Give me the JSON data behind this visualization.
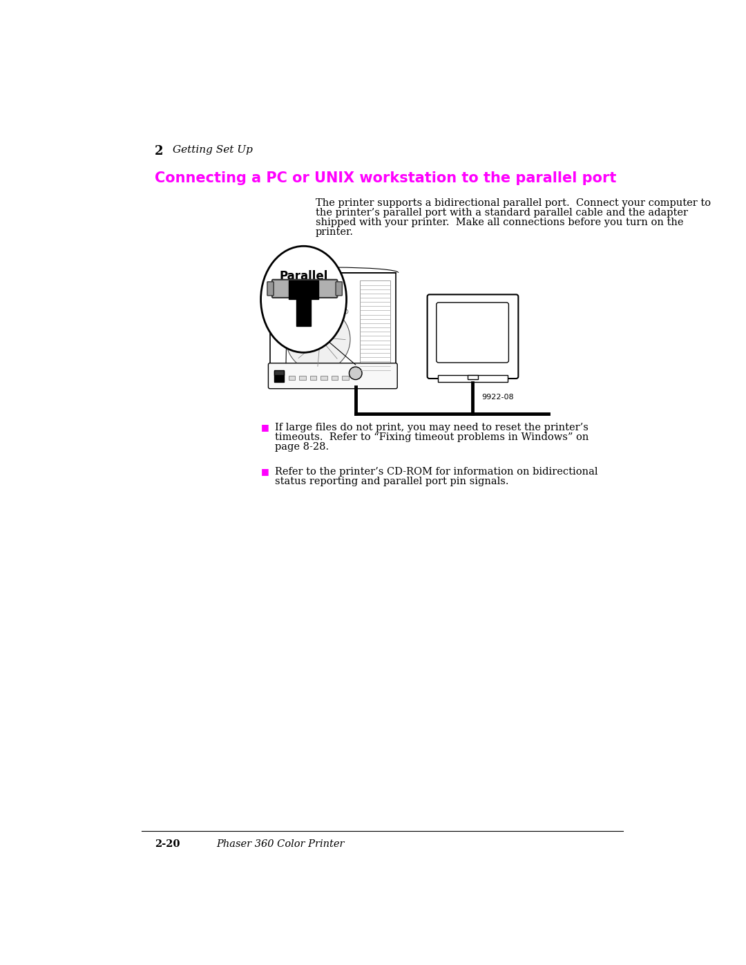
{
  "bg_color": "#ffffff",
  "page_num": "2",
  "chapter": "Getting Set Up",
  "section_title": "Connecting a PC or UNIX workstation to the parallel port",
  "section_title_color": "#ff00ff",
  "body_text_line1": "The printer supports a bidirectional parallel port.  Connect your computer to",
  "body_text_line2": "the printer’s parallel port with a standard parallel cable and the adapter",
  "body_text_line3": "shipped with your printer.  Make all connections before you turn on the",
  "body_text_line4": "printer.",
  "bullet1_line1": "If large files do not print, you may need to reset the printer’s",
  "bullet1_line2": "timeouts.  Refer to “Fixing timeout problems in Windows” on",
  "bullet1_line3": "page 8-28.",
  "bullet2_line1": "Refer to the printer’s CD-ROM for information on bidirectional",
  "bullet2_line2": "status reporting and parallel port pin signals.",
  "footer_page": "2-20",
  "footer_text": "Phaser 360 Color Printer",
  "diagram_label": "Parallel",
  "diagram_code": "9922-08",
  "text_color": "#000000",
  "bullet_color": "#ff00ff",
  "body_text_size": 10.5,
  "section_title_size": 15,
  "chapter_num_size": 13,
  "chapter_text_size": 11,
  "footer_size": 10.5
}
